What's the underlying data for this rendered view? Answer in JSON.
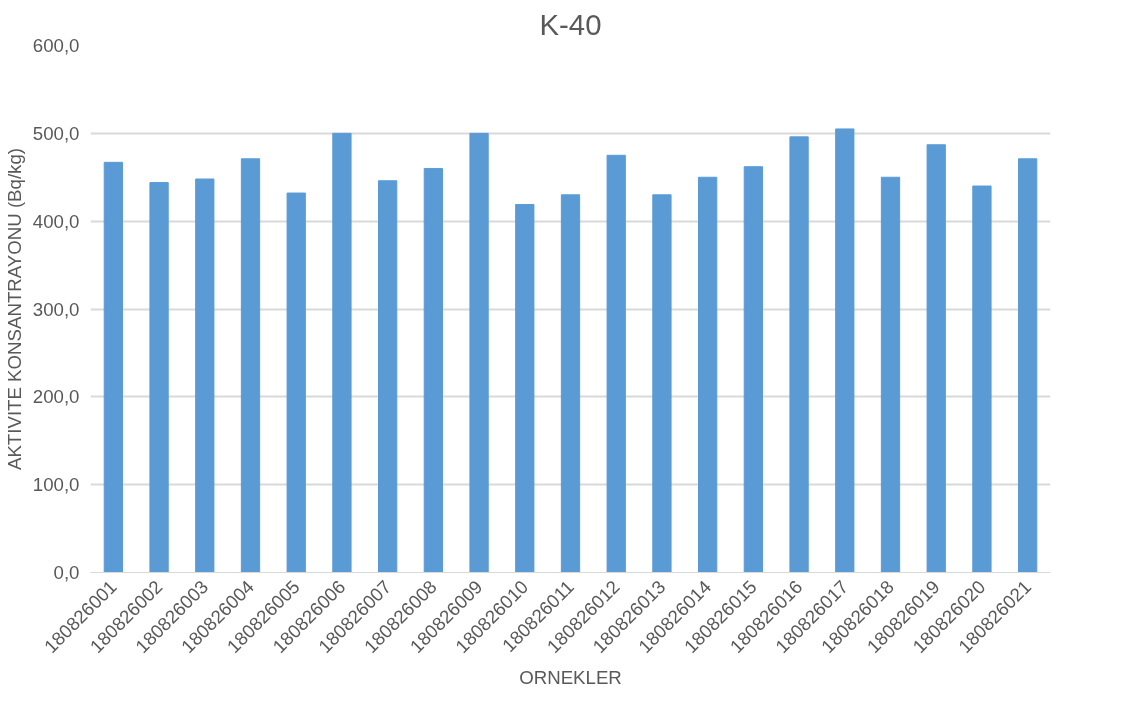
{
  "chart_data": {
    "type": "bar",
    "title": "K-40",
    "xlabel": "ORNEKLER",
    "ylabel": "AKTIVITE KONSANTRAYONU (Bq/kg)",
    "categories": [
      "180826001",
      "180826002",
      "180826003",
      "180826004",
      "180826005",
      "180826006",
      "180826007",
      "180826008",
      "180826009",
      "180826010",
      "180826011",
      "180826012",
      "180826013",
      "180826014",
      "180826015",
      "180826016",
      "180826017",
      "180826018",
      "180826019",
      "180826020",
      "180826021"
    ],
    "values": [
      467,
      444,
      448,
      471,
      432,
      500,
      446,
      460,
      500,
      419,
      430,
      475,
      430,
      450,
      462,
      496,
      505,
      450,
      487,
      440,
      471
    ],
    "color": "#5b9bd5",
    "ylim": [
      0,
      600
    ],
    "yticks": [
      {
        "value": 0,
        "label": "0,0"
      },
      {
        "value": 100,
        "label": "100,0"
      },
      {
        "value": 200,
        "label": "200,0"
      },
      {
        "value": 300,
        "label": "300,0"
      },
      {
        "value": 400,
        "label": "400,0"
      },
      {
        "value": 500,
        "label": "500,0"
      },
      {
        "value": 600,
        "label": "600,0"
      }
    ],
    "grid": "y"
  }
}
